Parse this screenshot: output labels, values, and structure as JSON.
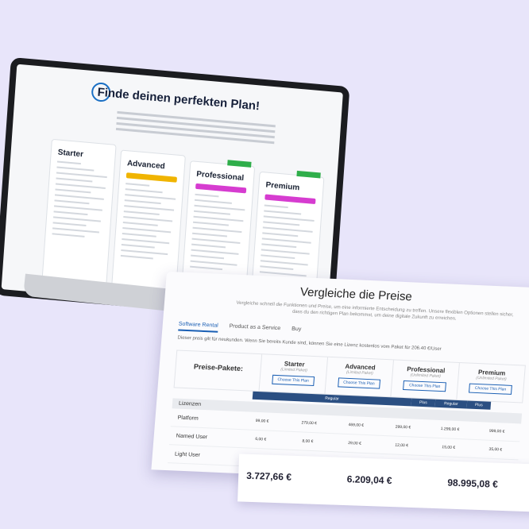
{
  "laptop": {
    "title": "Finde deinen perfekten Plan!",
    "plans": [
      {
        "name": "Starter"
      },
      {
        "name": "Advanced"
      },
      {
        "name": "Professional"
      },
      {
        "name": "Premium"
      }
    ]
  },
  "comparison": {
    "title": "Vergleiche die Preise",
    "subtitle": "Vergleiche schnell die Funktionen und Preise, um eine informierte Entscheidung zu treffen. Unsere flexiblen Optionen stellen sicher, dass du den richtigen Plan bekommst, um deine digitale Zukunft zu erreichen.",
    "tabs": [
      "Software Rental",
      "Product as a Service",
      "Buy"
    ],
    "note": "Dieser preis gilt für neukunden. Wenn Sie bereits Kunde sind, können Sie eine Lizenz kostenlos vom Paket für 206.40 €/User",
    "table": {
      "heading": "Preise-Pakete:",
      "plans": [
        {
          "name": "Starter",
          "sub": "(Limited Paket)",
          "button": "Choose This Plan"
        },
        {
          "name": "Advanced",
          "sub": "(Limited Paket)",
          "button": "Choose This Plan"
        },
        {
          "name": "Professional",
          "sub": "(Unlimited Paket)",
          "button": "Choose This Plan"
        },
        {
          "name": "Premium",
          "sub": "(Unlimited Paket)",
          "button": "Choose This Plan"
        }
      ],
      "toggles": [
        "Regular",
        "Plus",
        "Regular",
        "Plus"
      ],
      "section": "Lizenzen",
      "rows": [
        {
          "label": "Platform",
          "cells": [
            "99,00 €",
            "279,00 €",
            "469,00 €",
            "299,00 €",
            "1.299,00 €",
            "999,00 €"
          ]
        },
        {
          "label": "Named User",
          "cells": [
            "6,00 €",
            "8,00 €",
            "29,00 €",
            "12,00 €",
            "15,00 €",
            "35,00 €"
          ]
        },
        {
          "label": "Light User",
          "cells": []
        }
      ]
    },
    "totals": [
      "3.727,66 €",
      "6.209,04 €",
      "98.995,08 €"
    ]
  }
}
